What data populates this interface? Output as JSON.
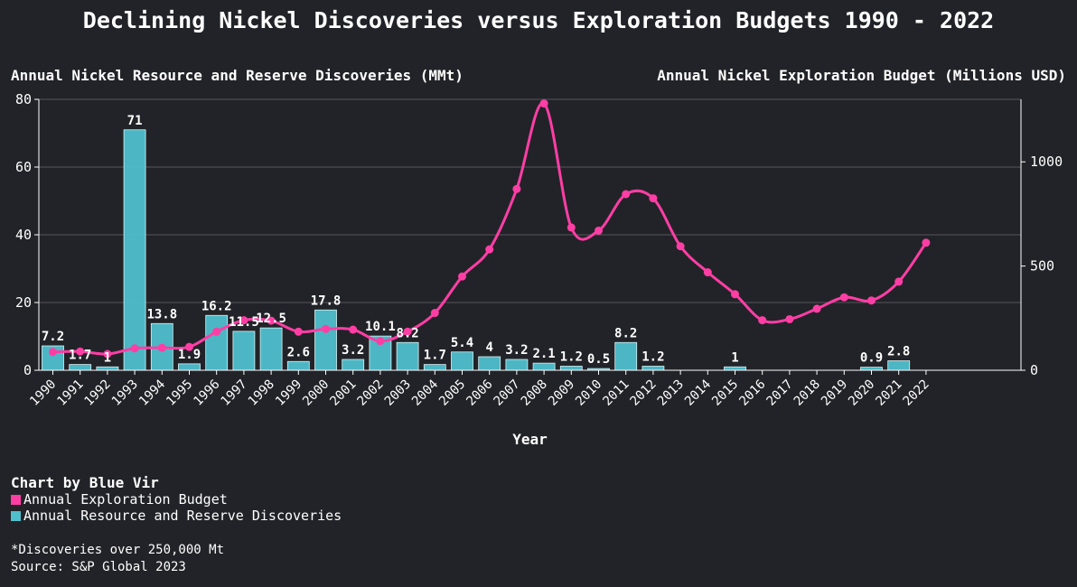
{
  "page": {
    "title": "Declining Nickel Discoveries versus Exploration Budgets 1990 - 2022",
    "credit": "Chart by Blue Vir",
    "footnote": "*Discoveries over 250,000 Mt",
    "source": "Source: S&P Global 2023"
  },
  "colors": {
    "background": "#222328",
    "bar": "#4fbfcc",
    "line": "#ff3ea5",
    "grid": "#55565c",
    "text": "#ffffff"
  },
  "chart_data": {
    "type": "bar+line",
    "title": "Declining Nickel Discoveries versus Exploration Budgets 1990 - 2022",
    "xlabel": "Year",
    "ylabel_left": "Annual Nickel Resource and Reserve Discoveries (MMt)",
    "ylabel_right": "Annual Nickel Exploration Budget (Millions USD)",
    "ylim_left": [
      0,
      80
    ],
    "yticks_left": [
      0,
      20,
      40,
      60,
      80
    ],
    "ylim_right": [
      0,
      1300
    ],
    "yticks_right": [
      0,
      500,
      1000
    ],
    "grid": true,
    "categories": [
      "1990",
      "1991",
      "1992",
      "1993",
      "1994",
      "1995",
      "1996",
      "1997",
      "1998",
      "1999",
      "2000",
      "2001",
      "2002",
      "2003",
      "2004",
      "2005",
      "2006",
      "2007",
      "2008",
      "2009",
      "2010",
      "2011",
      "2012",
      "2013",
      "2014",
      "2015",
      "2016",
      "2017",
      "2018",
      "2019",
      "2020",
      "2021",
      "2022"
    ],
    "series": [
      {
        "name": "Annual Resource and Reserve Discoveries",
        "type": "bar",
        "axis": "left",
        "values": [
          7.2,
          1.7,
          1,
          71,
          13.8,
          1.9,
          16.2,
          11.5,
          12.5,
          2.6,
          17.8,
          3.2,
          10.1,
          8.2,
          1.7,
          5.4,
          4,
          3.2,
          2.1,
          1.2,
          0.5,
          8.2,
          1.2,
          0,
          0,
          1,
          0,
          0,
          0,
          0,
          0.9,
          2.8,
          0
        ],
        "labels": [
          "7.2",
          "1.7",
          "1",
          "71",
          "13.8",
          "1.9",
          "16.2",
          "11.5",
          "12.5",
          "2.6",
          "17.8",
          "3.2",
          "10.1",
          "8.2",
          "1.7",
          "5.4",
          "4",
          "3.2",
          "2.1",
          "1.2",
          "0.5",
          "8.2",
          "1.2",
          "",
          "",
          "1",
          "",
          "",
          "",
          "",
          "0.9",
          "2.8",
          ""
        ]
      },
      {
        "name": "Annual Exploration Budget",
        "type": "line",
        "axis": "right",
        "values": [
          88,
          90,
          78,
          105,
          108,
          112,
          185,
          240,
          238,
          185,
          198,
          195,
          140,
          185,
          275,
          450,
          580,
          870,
          1280,
          685,
          670,
          845,
          825,
          595,
          470,
          365,
          240,
          245,
          295,
          350,
          335,
          425,
          612
        ]
      }
    ]
  },
  "legend": {
    "items": [
      {
        "label": "Annual Exploration Budget",
        "color": "#ff3ea5"
      },
      {
        "label": "Annual Resource and Reserve Discoveries",
        "color": "#4fbfcc"
      }
    ]
  }
}
